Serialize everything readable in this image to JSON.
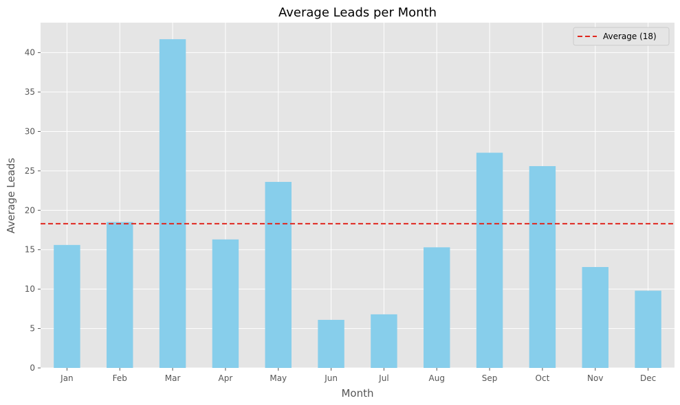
{
  "chart_data": {
    "type": "bar",
    "title": "Average Leads per Month",
    "xlabel": "Month",
    "ylabel": "Average Leads",
    "categories": [
      "Jan",
      "Feb",
      "Mar",
      "Apr",
      "May",
      "Jun",
      "Jul",
      "Aug",
      "Sep",
      "Oct",
      "Nov",
      "Dec"
    ],
    "values": [
      15.6,
      18.5,
      41.7,
      16.3,
      23.6,
      6.1,
      6.8,
      15.3,
      27.3,
      25.6,
      12.8,
      9.8
    ],
    "ylim": [
      0,
      43.8
    ],
    "yticks": [
      0,
      5,
      10,
      15,
      20,
      25,
      30,
      35,
      40
    ],
    "average": {
      "value": 18.3,
      "label": "Average (18)"
    },
    "grid": true,
    "legend_position": "top-right",
    "colors": {
      "bar": "#87ceeb",
      "average_line": "#e0261d",
      "plot_background": "#e5e5e5",
      "grid": "#ffffff"
    }
  }
}
